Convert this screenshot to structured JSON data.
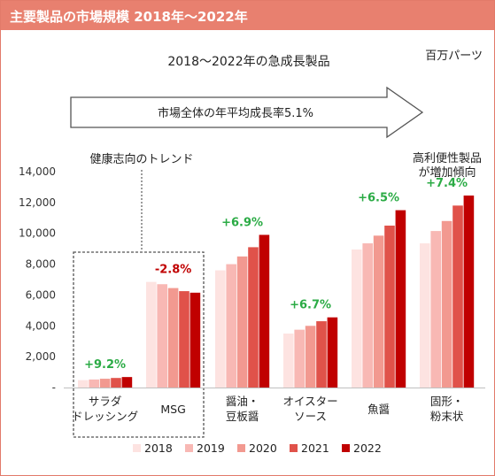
{
  "header": {
    "title": "主要製品の市場規模 2018年～2022年"
  },
  "chart_data": {
    "type": "bar",
    "title": "2018～2022年の急成長製品",
    "unit_label": "百万パーツ",
    "arrow_label": "市場全体の年平均成長率5.1%",
    "annotation_left": "健康志向のトレンド",
    "annotation_right": [
      "高利便性製品",
      "が増加傾向"
    ],
    "ylim": [
      0,
      14000
    ],
    "yticks": [
      "-",
      "2,000",
      "4,000",
      "6,000",
      "8,000",
      "10,000",
      "12,000",
      "14,000"
    ],
    "categories": [
      [
        "サラダ",
        "ドレッシング"
      ],
      [
        "MSG"
      ],
      [
        "醤油・",
        "豆板醤"
      ],
      [
        "オイスター",
        "ソース"
      ],
      [
        "魚醤"
      ],
      [
        "固形・",
        "粉末状"
      ]
    ],
    "growth_labels": [
      "+9.2%",
      "-2.8%",
      "+6.9%",
      "+6.7%",
      "+6.5%",
      "+7.4%"
    ],
    "growth_colors": [
      "#2bab45",
      "#c00000",
      "#2bab45",
      "#2bab45",
      "#2bab45",
      "#2bab45"
    ],
    "series": [
      {
        "name": "2018",
        "color": "#fde3e1",
        "values": [
          480,
          6850,
          7600,
          3500,
          8950,
          9350
        ]
      },
      {
        "name": "2019",
        "color": "#f8b8b4",
        "values": [
          520,
          6700,
          8000,
          3750,
          9350,
          10150
        ]
      },
      {
        "name": "2020",
        "color": "#f29990",
        "values": [
          570,
          6450,
          8500,
          4000,
          9850,
          10800
        ]
      },
      {
        "name": "2021",
        "color": "#e0524a",
        "values": [
          620,
          6250,
          9100,
          4300,
          10500,
          11800
        ]
      },
      {
        "name": "2022",
        "color": "#c00000",
        "values": [
          680,
          6150,
          9900,
          4550,
          11500,
          12450
        ]
      }
    ]
  }
}
